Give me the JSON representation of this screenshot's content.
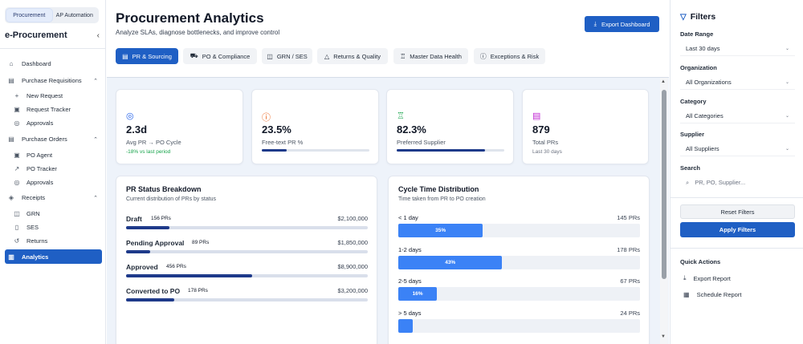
{
  "app_switch": {
    "procurement": "Procurement",
    "ap_automation": "AP Automation"
  },
  "sidebar": {
    "brand": "e-Procurement",
    "collapse_icon": "chevron-left-icon",
    "items": [
      {
        "label": "Dashboard",
        "icon": "home-icon"
      },
      {
        "label": "Purchase Requisitions",
        "icon": "document-icon"
      },
      {
        "label": "New Request",
        "icon": "plus-icon"
      },
      {
        "label": "Request Tracker",
        "icon": "clipboard-icon"
      },
      {
        "label": "Approvals",
        "icon": "check-circle-icon"
      },
      {
        "label": "Purchase Orders",
        "icon": "document-icon"
      },
      {
        "label": "PO Agent",
        "icon": "clipboard-icon"
      },
      {
        "label": "PO Tracker",
        "icon": "trend-icon"
      },
      {
        "label": "Approvals",
        "icon": "check-circle-icon"
      },
      {
        "label": "Receipts",
        "icon": "layers-icon"
      },
      {
        "label": "GRN",
        "icon": "box-icon"
      },
      {
        "label": "SES",
        "icon": "file-icon"
      },
      {
        "label": "Returns",
        "icon": "return-icon"
      },
      {
        "label": "Analytics",
        "icon": "chart-icon"
      }
    ]
  },
  "header": {
    "title": "Procurement Analytics",
    "subtitle": "Analyze SLAs, diagnose bottlenecks, and improve control",
    "export_label": "Export Dashboard"
  },
  "tabs": [
    {
      "label": "PR & Sourcing"
    },
    {
      "label": "PO & Compliance"
    },
    {
      "label": "GRN / SES"
    },
    {
      "label": "Returns & Quality"
    },
    {
      "label": "Master Data Health"
    },
    {
      "label": "Exceptions & Risk"
    }
  ],
  "kpis": [
    {
      "value": "2.3d",
      "label": "Avg PR → PO Cycle",
      "sub": "-18% vs last period",
      "color": "#2563eb"
    },
    {
      "value": "23.5%",
      "label": "Free-text PR %",
      "progress": 0.235,
      "color": "#ea580c"
    },
    {
      "value": "82.3%",
      "label": "Preferred Supplier",
      "progress": 0.823,
      "color": "#16a34a"
    },
    {
      "value": "879",
      "label": "Total PRs",
      "sub": "Last 30 days",
      "color": "#c026d3"
    }
  ],
  "pr_status": {
    "title": "PR Status Breakdown",
    "subtitle": "Current distribution of PRs by status",
    "rows": [
      {
        "name": "Draft",
        "count": "156 PRs",
        "amount": "$2,100,000",
        "share": 0.18
      },
      {
        "name": "Pending Approval",
        "count": "89 PRs",
        "amount": "$1,850,000",
        "share": 0.1
      },
      {
        "name": "Approved",
        "count": "456 PRs",
        "amount": "$8,900,000",
        "share": 0.52
      },
      {
        "name": "Converted to PO",
        "count": "178 PRs",
        "amount": "$3,200,000",
        "share": 0.2
      }
    ]
  },
  "cycle_time": {
    "title": "Cycle Time Distribution",
    "subtitle": "Time taken from PR to PO creation",
    "rows": [
      {
        "name": "< 1 day",
        "count": "145 PRs",
        "pct_label": "35%",
        "share": 0.35
      },
      {
        "name": "1-2 days",
        "count": "178 PRs",
        "pct_label": "43%",
        "share": 0.43
      },
      {
        "name": "2-5 days",
        "count": "67 PRs",
        "pct_label": "16%",
        "share": 0.16
      },
      {
        "name": "> 5 days",
        "count": "24 PRs",
        "pct_label": "",
        "share": 0.06
      }
    ]
  },
  "filters": {
    "title": "Filters",
    "date_range": {
      "label": "Date Range",
      "value": "Last 30 days"
    },
    "organization": {
      "label": "Organization",
      "value": "All Organizations"
    },
    "category": {
      "label": "Category",
      "value": "All Categories"
    },
    "supplier": {
      "label": "Supplier",
      "value": "All Suppliers"
    },
    "search": {
      "label": "Search",
      "placeholder": "PR, PO, Supplier..."
    },
    "reset_label": "Reset Filters",
    "apply_label": "Apply Filters"
  },
  "quick_actions": {
    "label": "Quick Actions",
    "items": [
      {
        "label": "Export Report",
        "icon": "download-icon"
      },
      {
        "label": "Schedule Report",
        "icon": "calendar-icon"
      }
    ]
  },
  "colors": {
    "accent": "#1f5fc4",
    "bar_dark": "#1e3a8a",
    "bar_blue": "#3b82f6"
  }
}
